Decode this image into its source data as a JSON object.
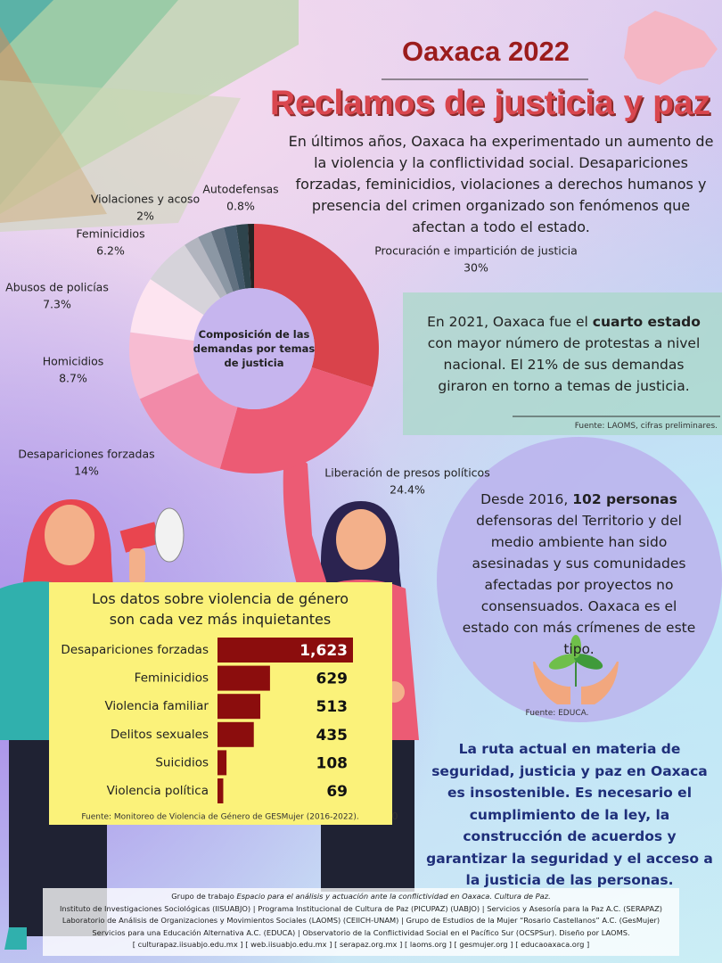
{
  "header": {
    "title": "Oaxaca 2022",
    "subtitle": "Reclamos de justicia y paz"
  },
  "intro": "En últimos años, Oaxaca ha experimentado un aumento de la violencia y la conflictividad social. Desapariciones forzadas, feminicidios, violaciones a derechos humanos y presencia del crimen organizado son fenómenos que afectan a todo el estado.",
  "chart_data": [
    {
      "type": "pie",
      "donut": true,
      "title": "Composición de las demandas por temas de justicia",
      "categories": [
        "Procuración e impartición de justicia",
        "Liberación de presos políticos",
        "Desapariciones forzadas",
        "Homicidios",
        "Abusos de policías",
        "Feminicidios",
        "Violaciones y acoso",
        null,
        null,
        null,
        null,
        "Autodefensas"
      ],
      "values": [
        30,
        24.4,
        14,
        8.7,
        7.3,
        6.2,
        2,
        1.8,
        1.7,
        1.6,
        1.5,
        0.8
      ],
      "value_labels": [
        "30%",
        "24.4%",
        "14%",
        "8.7%",
        "7.3%",
        "6.2%",
        "2%",
        null,
        null,
        null,
        null,
        "0.8%"
      ],
      "colors": [
        "#d9434b",
        "#ec5b74",
        "#f28aa8",
        "#f7bcd2",
        "#fde4f0",
        "#d6d3da",
        "#b2b5bf",
        "#8b97a4",
        "#627180",
        "#43596a",
        "#2e444c",
        "#232323"
      ]
    },
    {
      "type": "bar",
      "orientation": "horizontal",
      "title": "Los datos sobre violencia de género son cada vez más inquietantes",
      "categories": [
        "Desapariciones forzadas",
        "Feminicidios",
        "Violencia familiar",
        "Delitos sexuales",
        "Suicidios",
        "Violencia política"
      ],
      "values": [
        1623,
        629,
        513,
        435,
        108,
        69
      ],
      "value_labels": [
        "1,623",
        "629",
        "513",
        "435",
        "108",
        "69"
      ],
      "color": "#8b0d0d",
      "xticks": [
        0
      ],
      "source": "Fuente: Monitoreo de Violencia de Género de GESMujer (2016-2022)."
    }
  ],
  "protests": {
    "parts": [
      "En 2021, Oaxaca fue el ",
      "cuarto estado",
      " con mayor número de protestas a nivel nacional. El 21% de sus demandas giraron en torno a temas de justicia."
    ],
    "source": "Fuente: LAOMS, cifras preliminares."
  },
  "defenders": {
    "parts": [
      "Desde 2016, ",
      "102 personas",
      " defensoras del Territorio y del medio ambiente han sido asesinadas y sus comunidades afectadas por proyectos no consensuados. Oaxaca es el estado con más crímenes de este tipo."
    ],
    "source": "Fuente: EDUCA."
  },
  "conclusion": "La ruta actual en materia de seguridad, justicia y paz en Oaxaca es insostenible. Es necesario el cumplimiento de la ley, la construcción de acuerdos y garantizar la seguridad y el acceso a la justicia de las personas.",
  "footer": {
    "lead": [
      "Grupo de trabajo ",
      "Espacio para el análisis y actuación ante la conflictividad en Oaxaca. Cultura de Paz."
    ],
    "lines": [
      "Instituto de Investigaciones Sociológicas (IISUABJO) | Programa Institucional de Cultura de Paz (PICUPAZ) (UABJO) | Servicios y Asesoría para la Paz A.C. (SERAPAZ)",
      "Laboratorio de Análisis de Organizaciones y Movimientos Sociales (LAOMS) (CEIICH-UNAM) | Grupo de Estudios de la Mujer “Rosario Castellanos” A.C. (GesMujer)",
      "Servicios para una Educación Alternativa A.C. (EDUCA)  | Observatorio de la Conflictividad Social en el Pacífico Sur (OCSPSur). Diseño por LAOMS.",
      "[ culturapaz.iisuabjo.edu.mx ] [ web.iisuabjo.edu.mx ]  [ serapaz.org.mx ] [ laoms.org ] [ gesmujer.org ] [ educaoaxaca.org ]"
    ]
  }
}
